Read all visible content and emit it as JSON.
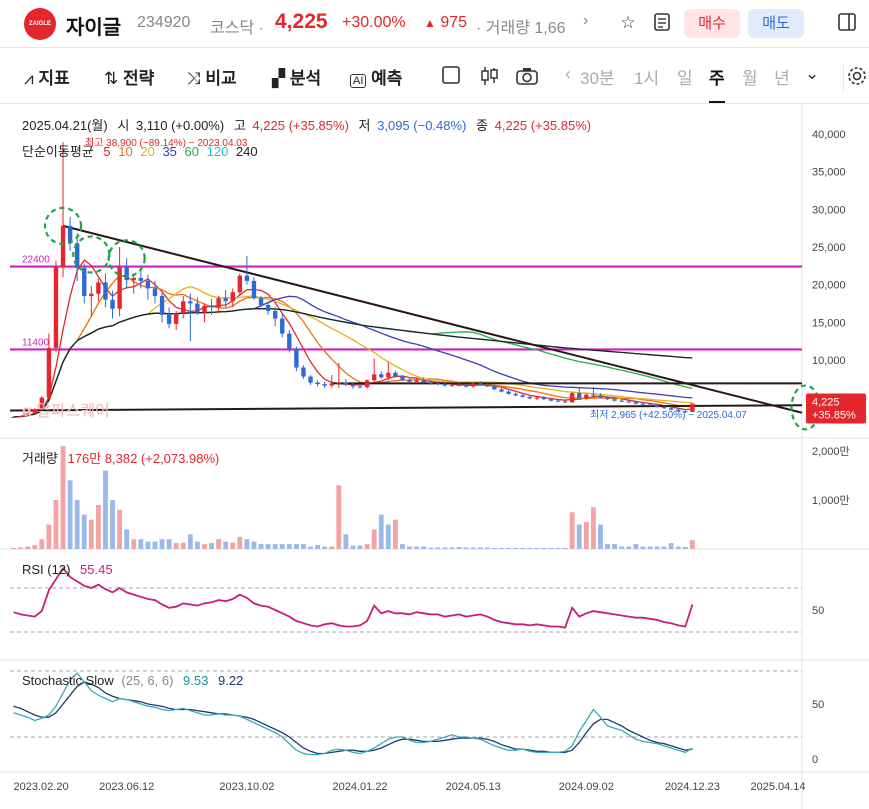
{
  "header": {
    "logo_text": "ZAIGLE",
    "name": "자이글",
    "code": "234920",
    "market": "코스닥 ·",
    "price": "4,225",
    "change_pct": "+30.00%",
    "change": "975",
    "volume": "· 거래량 1,66",
    "buy_label": "매수",
    "sell_label": "매도",
    "next_glyph": "›"
  },
  "toolbar": {
    "items": [
      "지표",
      "전략",
      "비교",
      "분석",
      "예측"
    ],
    "periods": [
      "30분",
      "1시",
      "일",
      "주",
      "월",
      "년"
    ],
    "active_period": "주"
  },
  "chart_data": {
    "type": "candlestick",
    "info_line": {
      "date": "2025.04.21(월)",
      "open_label": "시",
      "open": "3,110 (+0.00%)",
      "high_label": "고",
      "high": "4,225 (+35.85%)",
      "low_label": "저",
      "low": "3,095 (−0.48%)",
      "close_label": "종",
      "close": "4,225 (+35.85%)"
    },
    "ma_label": "단순이동평균",
    "ma_periods": [
      {
        "period": "5",
        "color": "#e5262c"
      },
      {
        "period": "10",
        "color": "#e8730f"
      },
      {
        "period": "20",
        "color": "#e2b21a"
      },
      {
        "period": "35",
        "color": "#3b3fb8"
      },
      {
        "period": "60",
        "color": "#22b04b"
      },
      {
        "period": "120",
        "color": "#29c4d6"
      },
      {
        "period": "240",
        "color": "#222222"
      }
    ],
    "max_annotation": "최고 38,900 (−89.14%) − 2023.04.03",
    "min_annotation": "최저 2,965 (+42.50%) − 2025.04.07",
    "watermark": "알파스퀘어",
    "price_axis": [
      40000,
      35000,
      30000,
      25000,
      20000,
      15000,
      10000
    ],
    "price_axis_labels": [
      "40,000",
      "35,000",
      "30,000",
      "25,000",
      "20,000",
      "15,000",
      "10,000"
    ],
    "hlines": [
      {
        "value": 22400,
        "label": "22400"
      },
      {
        "value": 11400,
        "label": "11400"
      }
    ],
    "current_price_label": "4,225",
    "current_pct_label": "+35.85%",
    "candles": [
      [
        2400,
        2500,
        2350,
        2450
      ],
      [
        2450,
        2600,
        2400,
        2550
      ],
      [
        2550,
        3000,
        2500,
        2900
      ],
      [
        2900,
        3600,
        2800,
        3400
      ],
      [
        3400,
        5200,
        3300,
        5000
      ],
      [
        5000,
        13500,
        4800,
        11600
      ],
      [
        11600,
        23200,
        11000,
        22300
      ],
      [
        22300,
        38900,
        21000,
        27800
      ],
      [
        27800,
        29000,
        24500,
        25500
      ],
      [
        25500,
        26800,
        20500,
        22200
      ],
      [
        22200,
        22800,
        17500,
        18500
      ],
      [
        18500,
        19800,
        15800,
        18800
      ],
      [
        18800,
        20800,
        17800,
        20300
      ],
      [
        20300,
        21500,
        17000,
        18000
      ],
      [
        18000,
        19200,
        15500,
        16800
      ],
      [
        16800,
        25000,
        15800,
        22300
      ],
      [
        22300,
        23500,
        19500,
        20600
      ],
      [
        20600,
        21500,
        18800,
        20900
      ],
      [
        20900,
        21800,
        19500,
        20500
      ],
      [
        20500,
        21300,
        18000,
        19500
      ],
      [
        19500,
        20500,
        17500,
        18500
      ],
      [
        18500,
        18900,
        15000,
        16000
      ],
      [
        16000,
        17000,
        14200,
        14800
      ],
      [
        14800,
        16500,
        14000,
        16200
      ],
      [
        16200,
        18500,
        15500,
        17800
      ],
      [
        17800,
        18800,
        12500,
        17500
      ],
      [
        17500,
        18300,
        16000,
        16300
      ],
      [
        16300,
        17500,
        15000,
        17200
      ],
      [
        17200,
        18100,
        16000,
        17000
      ],
      [
        17000,
        18500,
        16200,
        18200
      ],
      [
        18200,
        19300,
        17000,
        17800
      ],
      [
        17800,
        19500,
        17000,
        19000
      ],
      [
        19000,
        21500,
        18500,
        21200
      ],
      [
        21200,
        23800,
        20000,
        20500
      ],
      [
        20500,
        21000,
        18000,
        18200
      ],
      [
        18200,
        18500,
        17000,
        17300
      ],
      [
        17300,
        17800,
        16000,
        16500
      ],
      [
        16500,
        17000,
        14500,
        15500
      ],
      [
        15500,
        16200,
        13000,
        13500
      ],
      [
        13500,
        14000,
        11000,
        11500
      ],
      [
        11500,
        11800,
        8500,
        9000
      ],
      [
        9000,
        9300,
        7500,
        7800
      ],
      [
        7800,
        8000,
        6700,
        7000
      ],
      [
        7000,
        7300,
        6500,
        6800
      ],
      [
        6800,
        7100,
        6300,
        6600
      ],
      [
        6600,
        8000,
        6300,
        6900
      ],
      [
        6900,
        9600,
        6300,
        7000
      ],
      [
        7000,
        7500,
        6500,
        6700
      ],
      [
        6700,
        7000,
        6200,
        6500
      ],
      [
        6500,
        6800,
        6200,
        6400
      ],
      [
        6400,
        7400,
        6200,
        7300
      ],
      [
        7300,
        10200,
        7000,
        8100
      ],
      [
        8100,
        8500,
        7500,
        7700
      ],
      [
        7700,
        9800,
        7300,
        8300
      ],
      [
        8300,
        8600,
        7600,
        7800
      ],
      [
        7800,
        8000,
        7200,
        7400
      ],
      [
        7400,
        7600,
        6900,
        7100
      ],
      [
        7100,
        7500,
        6900,
        7300
      ],
      [
        7300,
        7700,
        6900,
        7000
      ],
      [
        7000,
        7300,
        6700,
        6900
      ],
      [
        6900,
        7200,
        6600,
        6800
      ],
      [
        6800,
        7000,
        6500,
        6600
      ],
      [
        6600,
        6900,
        6400,
        6700
      ],
      [
        6700,
        7000,
        6500,
        6600
      ],
      [
        6600,
        6800,
        6300,
        6500
      ],
      [
        6500,
        7000,
        6300,
        6900
      ],
      [
        6900,
        7200,
        6600,
        6700
      ],
      [
        6700,
        6900,
        6400,
        6500
      ],
      [
        6500,
        6700,
        6000,
        6100
      ],
      [
        6100,
        6300,
        5700,
        5800
      ],
      [
        5800,
        6000,
        5400,
        5500
      ],
      [
        5500,
        5700,
        5200,
        5300
      ],
      [
        5300,
        5500,
        5000,
        5100
      ],
      [
        5100,
        5300,
        4800,
        4900
      ],
      [
        4900,
        5200,
        4700,
        5000
      ],
      [
        5000,
        5200,
        4700,
        4800
      ],
      [
        4800,
        5000,
        4500,
        4600
      ],
      [
        4600,
        4800,
        4400,
        4500
      ],
      [
        4500,
        4700,
        4300,
        4400
      ],
      [
        4400,
        5800,
        4300,
        5600
      ],
      [
        5600,
        6400,
        4700,
        4900
      ],
      [
        4900,
        5600,
        4700,
        5400
      ],
      [
        5400,
        6400,
        5100,
        5300
      ],
      [
        5300,
        5600,
        4900,
        5000
      ],
      [
        5000,
        5200,
        4700,
        4800
      ],
      [
        4800,
        5000,
        4500,
        4600
      ],
      [
        4600,
        4800,
        4400,
        4500
      ],
      [
        4500,
        4700,
        4300,
        4400
      ],
      [
        4400,
        4600,
        4100,
        4200
      ],
      [
        4200,
        4400,
        4000,
        4100
      ],
      [
        4100,
        4300,
        3900,
        4000
      ],
      [
        4000,
        4200,
        3700,
        3800
      ],
      [
        3800,
        4000,
        3500,
        3600
      ],
      [
        3600,
        3800,
        3300,
        3400
      ],
      [
        3400,
        3600,
        3100,
        3200
      ],
      [
        3200,
        3300,
        2965,
        3110
      ],
      [
        3110,
        4225,
        3095,
        4225
      ]
    ],
    "volume_label": "거래량",
    "volume_info": "176만 8,382 (+2,073.98%)",
    "volume_axis_labels": [
      "2,000만",
      "1,000만"
    ],
    "volume_axis": [
      20000000,
      10000000
    ],
    "volumes": [
      [
        0.2,
        1
      ],
      [
        0.3,
        1
      ],
      [
        0.5,
        1
      ],
      [
        0.8,
        1
      ],
      [
        2,
        1
      ],
      [
        5,
        1
      ],
      [
        10,
        1
      ],
      [
        21,
        1
      ],
      [
        14,
        0
      ],
      [
        10,
        0
      ],
      [
        7,
        0
      ],
      [
        6,
        1
      ],
      [
        9,
        1
      ],
      [
        16,
        0
      ],
      [
        10,
        0
      ],
      [
        8,
        1
      ],
      [
        4,
        0
      ],
      [
        2,
        1
      ],
      [
        2,
        0
      ],
      [
        1.5,
        0
      ],
      [
        1.5,
        0
      ],
      [
        2,
        0
      ],
      [
        2,
        0
      ],
      [
        1.2,
        1
      ],
      [
        1.3,
        1
      ],
      [
        3,
        0
      ],
      [
        1.5,
        0
      ],
      [
        1,
        1
      ],
      [
        1.2,
        0
      ],
      [
        2,
        1
      ],
      [
        1.5,
        0
      ],
      [
        1.3,
        1
      ],
      [
        2.5,
        1
      ],
      [
        2,
        0
      ],
      [
        1.5,
        0
      ],
      [
        1,
        0
      ],
      [
        1,
        0
      ],
      [
        1,
        0
      ],
      [
        1,
        0
      ],
      [
        1,
        0
      ],
      [
        1,
        0
      ],
      [
        1,
        0
      ],
      [
        0.5,
        0
      ],
      [
        0.8,
        0
      ],
      [
        0.5,
        0
      ],
      [
        0.5,
        1
      ],
      [
        13,
        1
      ],
      [
        3,
        0
      ],
      [
        0.7,
        0
      ],
      [
        0.7,
        0
      ],
      [
        1,
        1
      ],
      [
        4,
        1
      ],
      [
        7,
        0
      ],
      [
        5,
        0
      ],
      [
        6,
        1
      ],
      [
        1,
        0
      ],
      [
        0.5,
        0
      ],
      [
        0.5,
        0
      ],
      [
        0.5,
        0
      ],
      [
        0.3,
        0
      ],
      [
        0.3,
        0
      ],
      [
        0.3,
        0
      ],
      [
        0.3,
        0
      ],
      [
        0.4,
        0
      ],
      [
        0.3,
        0
      ],
      [
        0.3,
        0
      ],
      [
        0.3,
        0
      ],
      [
        0.3,
        0
      ],
      [
        0.2,
        0
      ],
      [
        0.2,
        0
      ],
      [
        0.2,
        0
      ],
      [
        0.2,
        0
      ],
      [
        0.2,
        0
      ],
      [
        0.2,
        0
      ],
      [
        0.2,
        0
      ],
      [
        0.2,
        0
      ],
      [
        0.2,
        0
      ],
      [
        0.2,
        0
      ],
      [
        0.2,
        0
      ],
      [
        7.5,
        1
      ],
      [
        5,
        0
      ],
      [
        5.5,
        1
      ],
      [
        8.5,
        1
      ],
      [
        5,
        0
      ],
      [
        1,
        0
      ],
      [
        1,
        0
      ],
      [
        0.5,
        0
      ],
      [
        0.5,
        0
      ],
      [
        1,
        0
      ],
      [
        0.5,
        0
      ],
      [
        0.5,
        0
      ],
      [
        0.5,
        0
      ],
      [
        0.5,
        0
      ],
      [
        1.2,
        0
      ],
      [
        0.5,
        0
      ],
      [
        0.4,
        0
      ],
      [
        1.8,
        1
      ]
    ],
    "rsi_label": "RSI (12)",
    "rsi_value": "55.45",
    "rsi_axis_labels": [
      "50"
    ],
    "rsi": [
      48,
      46,
      45,
      44,
      49,
      68,
      78,
      88,
      80,
      76,
      72,
      70,
      73,
      69,
      66,
      70,
      66,
      64,
      62,
      60,
      59,
      55,
      52,
      53,
      56,
      55,
      54,
      56,
      57,
      59,
      58,
      60,
      64,
      61,
      56,
      54,
      53,
      50,
      47,
      44,
      40,
      38,
      36,
      35,
      37,
      38,
      36,
      35,
      35,
      36,
      40,
      54,
      47,
      49,
      47,
      47,
      46,
      48,
      47,
      46,
      46,
      44,
      45,
      46,
      44,
      45,
      46,
      44,
      41,
      39,
      38,
      37,
      37,
      36,
      37,
      36,
      35,
      35,
      34,
      52,
      44,
      47,
      49,
      48,
      47,
      46,
      45,
      44,
      43,
      43,
      42,
      41,
      39,
      38,
      36,
      35,
      55
    ],
    "stoch_label": "Stochastic Slow",
    "stoch_params": "(25, 6, 6)",
    "stoch_k_value": "9.53",
    "stoch_d_value": "9.22",
    "stoch_axis_labels": [
      "50",
      "0"
    ],
    "stoch_k": [
      42,
      40,
      38,
      35,
      37,
      40,
      48,
      60,
      72,
      78,
      70,
      62,
      58,
      55,
      52,
      55,
      54,
      52,
      50,
      48,
      47,
      45,
      44,
      45,
      46,
      44,
      42,
      40,
      40,
      41,
      40,
      40,
      39,
      36,
      33,
      30,
      27,
      24,
      20,
      14,
      8,
      5,
      4,
      4,
      5,
      8,
      9,
      8,
      6,
      5,
      7,
      10,
      14,
      18,
      20,
      20,
      17,
      15,
      15,
      16,
      18,
      20,
      22,
      20,
      20,
      19,
      18,
      15,
      12,
      10,
      8,
      8,
      9,
      7,
      6,
      6,
      6,
      6,
      7,
      12,
      25,
      35,
      45,
      38,
      30,
      28,
      26,
      22,
      18,
      16,
      15,
      14,
      12,
      10,
      8,
      6,
      10
    ],
    "stoch_d": [
      48,
      46,
      43,
      40,
      38,
      38,
      42,
      50,
      58,
      66,
      70,
      68,
      65,
      60,
      57,
      55,
      54,
      53,
      52,
      50,
      49,
      48,
      46,
      45,
      45,
      45,
      44,
      43,
      42,
      41,
      41,
      40,
      39,
      38,
      36,
      33,
      30,
      27,
      24,
      20,
      15,
      10,
      7,
      5,
      5,
      6,
      7,
      8,
      8,
      7,
      7,
      8,
      10,
      13,
      16,
      18,
      18,
      17,
      16,
      16,
      16,
      17,
      18,
      19,
      19,
      19,
      19,
      18,
      16,
      13,
      11,
      9,
      9,
      8,
      7,
      7,
      6,
      6,
      6,
      8,
      15,
      24,
      32,
      36,
      36,
      33,
      30,
      26,
      23,
      20,
      17,
      15,
      14,
      12,
      10,
      8,
      9
    ],
    "x_axis_labels": [
      "2023.02.20",
      "2023.06.12",
      "2023.10.02",
      "2024.01.22",
      "2024.05.13",
      "2024.09.02",
      "2024.12.23",
      "2025.04.14"
    ],
    "x_axis_indices": [
      0,
      16,
      33,
      49,
      65,
      81,
      96,
      112
    ]
  }
}
